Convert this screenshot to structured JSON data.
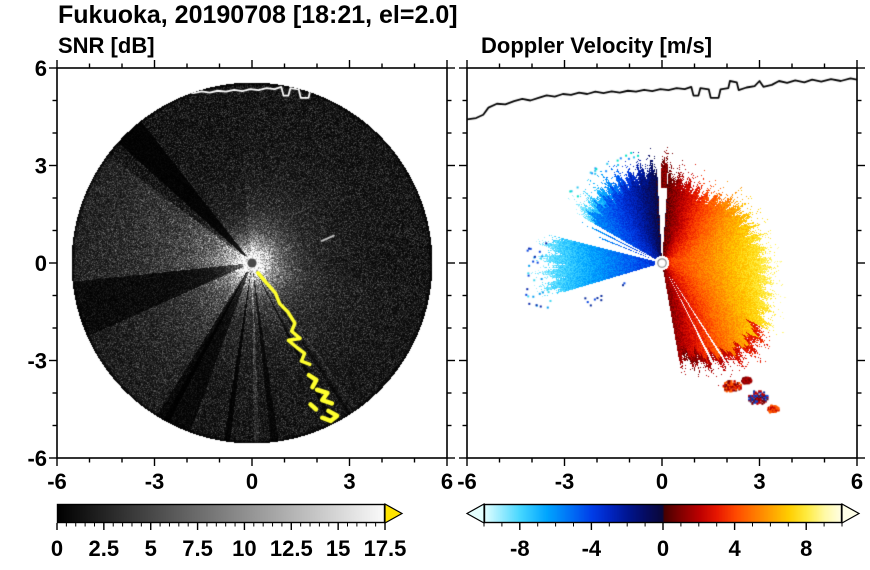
{
  "title": "Fukuoka, 20190708 [18:21, el=2.0]",
  "panels": {
    "left": {
      "title": "SNR [dB]"
    },
    "right": {
      "title": "Doppler Velocity [m/s]"
    }
  },
  "axes": {
    "range": [
      -6,
      6
    ],
    "minor_step": 1,
    "x_tick_values": [
      -6,
      -3,
      0,
      3,
      6
    ],
    "x_tick_labels": [
      "-6",
      "-3",
      "0",
      "3",
      "6"
    ],
    "y_tick_values": [
      6,
      3,
      0,
      -3,
      -6
    ],
    "y_tick_labels": [
      "6",
      "3",
      "0",
      "-3",
      "-6"
    ]
  },
  "colorbars": {
    "snr": {
      "range": [
        0,
        17.5
      ],
      "minor_step": 0.5,
      "tick_values": [
        0,
        2.5,
        5,
        7.5,
        10,
        12.5,
        15,
        17.5
      ],
      "tick_labels": [
        "0",
        "2.5",
        "5",
        "7.5",
        "10",
        "12.5",
        "15",
        "17.5"
      ],
      "start_color": "#000000",
      "end_color": "#fbfbfb",
      "over_arrow_color": "#ffe400"
    },
    "vel": {
      "range": [
        -10,
        10
      ],
      "minor_step": 1,
      "tick_values": [
        -8,
        -4,
        0,
        4,
        8
      ],
      "tick_labels": [
        "-8",
        "-4",
        "0",
        "4",
        "8"
      ],
      "under_arrow_color": "#e4ffff",
      "over_arrow_color": "#ffffe8"
    }
  },
  "chart_data": [
    {
      "type": "heatmap",
      "variant": "radar-ppi",
      "title": "SNR [dB]",
      "xlim": [
        -6,
        6
      ],
      "ylim": [
        -6,
        6
      ],
      "x_ticks": [
        -6,
        -3,
        0,
        3,
        6
      ],
      "y_ticks": [
        -6,
        -3,
        0,
        3,
        6
      ],
      "colorbar_range": [
        0,
        17.5
      ],
      "colorbar_ticks": [
        0,
        2.5,
        5,
        7.5,
        10,
        12.5,
        15,
        17.5
      ],
      "colormap": "grayscale black(0) to white(17.5), yellow over-range arrow",
      "scan_radius": 5.55,
      "notes": "PPI radar scan centered on radar at (0,0); bright saturated core at the radar; gray echo fans toward W (az 143-186) and SW (az 204-238); dark blocked wedge at az 128-138 and thin blocked rays toward S; thin bright ray pointing due S; saturated yellow coastline ground echo running SE from the radar to about (2.4,-4.8); white coastline overlay along the top of the scan."
    },
    {
      "type": "heatmap",
      "variant": "radar-ppi",
      "title": "Doppler Velocity [m/s]",
      "xlim": [
        -6,
        6
      ],
      "ylim": [
        -6,
        6
      ],
      "x_ticks": [
        -6,
        -3,
        0,
        3,
        6
      ],
      "y_ticks": [
        -6,
        -3,
        0,
        3,
        6
      ],
      "colorbar_range": [
        -10,
        10
      ],
      "colorbar_ticks": [
        -8,
        -4,
        0,
        4,
        8
      ],
      "colormap": "pale-cyan/cyan/blue/dark-navy for negative (toward radar), dark-red/red/orange/yellow/white for positive (away)",
      "notes": "Zero-isodop roughly N-S (flow from W to E): blue fan az 93-150 to r~3.3, deep blue wedge az 166-196 to r~3.9 with cyan outer specks, two thin blue rays az~153 and ~158; broad positive fan from az 280 through E to az 86 (orange near radar grading to yellow outward), red/dark-red fringe along its southern edge, thin red sliver near az 88 at r 2.3-3.2; detached red/blue echo patches near (2.2,-3.8), (3.0,-4.2), (3.4,-4.5); black coastline along the top; white = no data."
    }
  ],
  "render": {
    "coastline": [
      [
        -6,
        4.42
      ],
      [
        -5.72,
        4.46
      ],
      [
        -5.5,
        4.56
      ],
      [
        -5.34,
        4.78
      ],
      [
        -5.08,
        4.9
      ],
      [
        -4.82,
        4.88
      ],
      [
        -4.55,
        4.98
      ],
      [
        -4.3,
        5.05
      ],
      [
        -4.05,
        5.0
      ],
      [
        -3.8,
        5.08
      ],
      [
        -3.55,
        5.16
      ],
      [
        -3.3,
        5.12
      ],
      [
        -3.05,
        5.2
      ],
      [
        -2.8,
        5.17
      ],
      [
        -2.55,
        5.24
      ],
      [
        -2.3,
        5.2
      ],
      [
        -2.05,
        5.27
      ],
      [
        -1.8,
        5.23
      ],
      [
        -1.55,
        5.28
      ],
      [
        -1.3,
        5.24
      ],
      [
        -1.05,
        5.3
      ],
      [
        -0.8,
        5.27
      ],
      [
        -0.55,
        5.33
      ],
      [
        -0.3,
        5.29
      ],
      [
        -0.05,
        5.35
      ],
      [
        0.2,
        5.32
      ],
      [
        0.45,
        5.38
      ],
      [
        0.7,
        5.35
      ],
      [
        0.9,
        5.42
      ],
      [
        0.97,
        5.15
      ],
      [
        1.12,
        5.15
      ],
      [
        1.18,
        5.38
      ],
      [
        1.44,
        5.34
      ],
      [
        1.5,
        5.08
      ],
      [
        1.74,
        5.08
      ],
      [
        1.8,
        5.34
      ],
      [
        2.04,
        5.38
      ],
      [
        2.09,
        5.6
      ],
      [
        2.3,
        5.56
      ],
      [
        2.36,
        5.32
      ],
      [
        2.6,
        5.4
      ],
      [
        2.85,
        5.44
      ],
      [
        3.0,
        5.6
      ],
      [
        3.12,
        5.42
      ],
      [
        3.38,
        5.48
      ],
      [
        3.6,
        5.6
      ],
      [
        3.85,
        5.54
      ],
      [
        4.1,
        5.62
      ],
      [
        4.38,
        5.56
      ],
      [
        4.62,
        5.64
      ],
      [
        4.9,
        5.58
      ],
      [
        5.2,
        5.66
      ],
      [
        5.5,
        5.6
      ],
      [
        5.8,
        5.68
      ],
      [
        6,
        5.64
      ]
    ],
    "snr": {
      "radius": 5.55,
      "core_glow": {
        "amp": 240,
        "scale": 0.5,
        "diffuse_amp": 85,
        "diffuse_scale": 0.85
      },
      "fans": [
        {
          "a": [
            143,
            186
          ],
          "amp": 95,
          "scale": 2.8
        },
        {
          "a": [
            204,
            238
          ],
          "amp": 75,
          "scale": 2.4
        },
        {
          "a": [
            250,
            292
          ],
          "amp": 40,
          "scale": 1.7
        },
        {
          "a": [
            292,
            352
          ],
          "amp": 60,
          "scale": 1.6
        },
        {
          "a": [
            352,
            95
          ],
          "amp": 48,
          "scale": 1.25
        }
      ],
      "dark_wedges": [
        {
          "a": [
            128,
            138
          ],
          "f": 0.16
        },
        {
          "a": [
            186,
            204
          ],
          "f": 0.5
        },
        {
          "a": [
            238,
            250
          ],
          "f": 0.42
        },
        {
          "a": [
            240.5,
            242.5
          ],
          "f": 0.2
        },
        {
          "a": [
            261,
            263
          ],
          "f": 0.18
        },
        {
          "a": [
            276,
            278.5
          ],
          "f": 0.3
        },
        {
          "a": [
            296,
            297.6
          ],
          "f": 0.3
        },
        {
          "a": [
            302.2,
            303.4
          ],
          "f": 0.45
        }
      ],
      "bright_rays": [
        {
          "a": [
            270.6,
            272.4
          ],
          "amp": 80,
          "scale": 3.5
        },
        {
          "a": [
            304.5,
            306
          ],
          "amp": 45,
          "scale": 3.0
        }
      ],
      "center_dot_color": "#4a4a4a",
      "center_dot_radius": 0.14,
      "coast_color": "#ffffff",
      "echo_color": "#ffff2e",
      "coast_echo_main": [
        [
          0.18,
          -0.3
        ],
        [
          0.45,
          -0.62
        ],
        [
          0.72,
          -0.92
        ],
        [
          0.85,
          -1.25
        ],
        [
          1.1,
          -1.5
        ],
        [
          1.32,
          -1.85
        ],
        [
          1.22,
          -2.1
        ],
        [
          1.48,
          -2.32
        ],
        [
          1.12,
          -2.38
        ],
        [
          1.38,
          -2.6
        ],
        [
          1.62,
          -2.78
        ],
        [
          1.52,
          -3.02
        ],
        [
          1.78,
          -3.12
        ]
      ],
      "coast_echo_patches": [
        [
          [
            1.75,
            -3.45
          ],
          [
            1.98,
            -3.6
          ],
          [
            1.86,
            -3.82
          ]
        ],
        [
          [
            2.0,
            -3.9
          ],
          [
            2.32,
            -4.0
          ],
          [
            2.16,
            -4.22
          ],
          [
            2.46,
            -4.32
          ]
        ],
        [
          [
            1.8,
            -4.35
          ],
          [
            1.97,
            -4.5
          ]
        ],
        [
          [
            2.35,
            -4.55
          ],
          [
            2.62,
            -4.7
          ],
          [
            2.42,
            -4.86
          ],
          [
            2.16,
            -4.76
          ]
        ]
      ],
      "bright_dash": [
        [
          2.15,
          0.68
        ],
        [
          2.52,
          0.84
        ]
      ]
    },
    "vel": {
      "max_radius": 5.2,
      "flow": {
        "amp0": 3.3,
        "amp_slope": 1.5,
        "dir_deg": 0,
        "jitter": 1.3
      },
      "sectors": [
        {
          "name": "north-blue-fan",
          "a": [
            93,
            150
          ],
          "rmin": 0.22,
          "rmax": 3.05,
          "noise": 0.33,
          "edge_boost": 1.35,
          "seed": 3
        },
        {
          "name": "thin-blue-ray-1",
          "a": [
            152.7,
            153.9
          ],
          "rmin": 0.35,
          "rmax": 2.6,
          "noise": 0.1,
          "seed": 5
        },
        {
          "name": "thin-blue-ray-2",
          "a": [
            157.4,
            158.5
          ],
          "rmin": 0.35,
          "rmax": 2.2,
          "noise": 0.1,
          "seed": 7
        },
        {
          "name": "west-blue-wedge",
          "a": [
            166,
            196.5
          ],
          "rmin": 0.22,
          "rmax": 3.6,
          "noise": 0.4,
          "seed": 11
        },
        {
          "name": "main-echo-fan",
          "a": [
            280,
            86
          ],
          "rmin": 0.22,
          "noise": 0.3,
          "seed": 13,
          "profile": [
            [
              280,
              3.15
            ],
            [
              292,
              3.5
            ],
            [
              305,
              3.85
            ],
            [
              318,
              4.0
            ],
            [
              332,
              3.75
            ],
            [
              345,
              3.5
            ],
            [
              360,
              3.35
            ],
            [
              380,
              3.1
            ],
            [
              400,
              3.0
            ],
            [
              418,
              2.6
            ],
            [
              432,
              2.7
            ],
            [
              446,
              2.9
            ]
          ],
          "coast_slow": [
            283,
            327
          ]
        },
        {
          "name": "red-sliver",
          "a": [
            86.5,
            90.5
          ],
          "rmin": 2.3,
          "rmax": 3.25,
          "noise": 0.15,
          "force_v": [
            0.3,
            1.4
          ],
          "seed": 17
        }
      ],
      "white_rays": [
        [
          296.4,
          297.5
        ],
        [
          302.2,
          303.2
        ]
      ],
      "speck_clusters": [
        {
          "a": [
            170,
            202
          ],
          "r": [
            3.6,
            4.3
          ],
          "n": 30,
          "colors": [
            "#0a46e0",
            "#0aa0f0",
            "#0a28aa",
            "#40d8f0"
          ]
        },
        {
          "a": [
            204,
            214
          ],
          "r": [
            1.3,
            2.6
          ],
          "n": 9,
          "colors": [
            "#082a9a",
            "#0a46e0"
          ]
        },
        {
          "a": [
            100,
            143
          ],
          "r": [
            3.25,
            3.6
          ],
          "n": 20,
          "colors": [
            "#30c8f0",
            "#00e0c8",
            "#2090ff"
          ]
        }
      ],
      "blobs": [
        {
          "c": [
            2.15,
            -3.8
          ],
          "rx": 0.3,
          "ry": 0.18,
          "colors": [
            "#c00000",
            "#7a0000",
            "#ff5a00"
          ]
        },
        {
          "c": [
            2.6,
            -3.62
          ],
          "rx": 0.16,
          "ry": 0.1,
          "colors": [
            "#c00000",
            "#7a0000"
          ]
        },
        {
          "c": [
            2.95,
            -4.15
          ],
          "rx": 0.32,
          "ry": 0.22,
          "colors": [
            "#c00000",
            "#12329a",
            "#7a0000",
            "#0a46e0"
          ]
        },
        {
          "c": [
            3.42,
            -4.5
          ],
          "rx": 0.18,
          "ry": 0.12,
          "colors": [
            "#c00000",
            "#ff5a00"
          ]
        }
      ],
      "center_dot": {
        "color": "#ffffff",
        "ring": "#8a8a8a",
        "radius": 0.13
      },
      "coast_color": "#000000"
    },
    "vel_colormap_stops": [
      [
        -10,
        225,
        255,
        255
      ],
      [
        -8,
        70,
        215,
        255
      ],
      [
        -6.5,
        0,
        165,
        255
      ],
      [
        -5,
        0,
        105,
        245
      ],
      [
        -4,
        0,
        62,
        232
      ],
      [
        -3,
        0,
        38,
        195
      ],
      [
        -2,
        0,
        22,
        145
      ],
      [
        -1,
        6,
        12,
        98
      ],
      [
        -0.05,
        10,
        8,
        58
      ],
      [
        0.05,
        72,
        0,
        0
      ],
      [
        1,
        132,
        0,
        0
      ],
      [
        2,
        188,
        0,
        0
      ],
      [
        3,
        232,
        24,
        0
      ],
      [
        4,
        255,
        72,
        0
      ],
      [
        5,
        255,
        118,
        0
      ],
      [
        6,
        255,
        162,
        0
      ],
      [
        7,
        255,
        206,
        0
      ],
      [
        8,
        255,
        236,
        64
      ],
      [
        9,
        255,
        250,
        165
      ],
      [
        10,
        255,
        255,
        232
      ]
    ]
  }
}
